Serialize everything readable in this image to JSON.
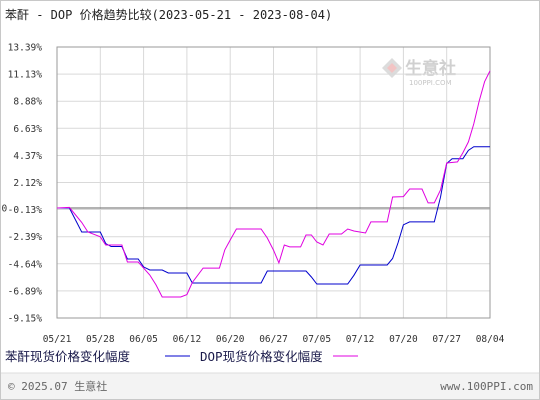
{
  "watermark": {
    "brand": "生意社",
    "site": "100PPI.COM"
  },
  "footer": {
    "copyright": "© 2025.07 生意社",
    "site": "www.100PPI.com"
  },
  "chart_data": {
    "type": "line",
    "title": "苯酐 - DOP 价格趋势比较(2023-05-21 - 2023-08-04)",
    "xlim": [
      "2023-05-21",
      "2023-08-04"
    ],
    "ylim": [
      -9.15,
      13.39
    ],
    "grid": true,
    "legend_position": "bottom",
    "zero_label": "0",
    "x_ticks": [
      {
        "date": "2023-05-21",
        "label": "05/21"
      },
      {
        "date": "2023-05-28",
        "label": "05/28"
      },
      {
        "date": "2023-06-05",
        "label": "06/05"
      },
      {
        "date": "2023-06-12",
        "label": "06/12"
      },
      {
        "date": "2023-06-20",
        "label": "06/20"
      },
      {
        "date": "2023-06-27",
        "label": "06/27"
      },
      {
        "date": "2023-07-05",
        "label": "07/05"
      },
      {
        "date": "2023-07-12",
        "label": "07/12"
      },
      {
        "date": "2023-07-20",
        "label": "07/20"
      },
      {
        "date": "2023-07-27",
        "label": "07/27"
      },
      {
        "date": "2023-08-04",
        "label": "08/04"
      }
    ],
    "y_ticks": [
      {
        "value": 13.39,
        "label": "13.39%"
      },
      {
        "value": 11.13,
        "label": "11.13%"
      },
      {
        "value": 8.88,
        "label": "8.88%"
      },
      {
        "value": 6.63,
        "label": "6.63%"
      },
      {
        "value": 4.37,
        "label": "4.37%"
      },
      {
        "value": 2.12,
        "label": "2.12%"
      },
      {
        "value": -0.13,
        "label": "-0.13%"
      },
      {
        "value": -2.39,
        "label": "-2.39%"
      },
      {
        "value": -4.64,
        "label": "-4.64%"
      },
      {
        "value": -6.89,
        "label": "-6.89%"
      },
      {
        "value": -9.15,
        "label": "-9.15%"
      }
    ],
    "series": [
      {
        "name": "苯酐现货价格变化幅度",
        "color": "#0000cc",
        "points": [
          [
            "2023-05-21",
            0.0
          ],
          [
            "2023-05-23",
            0.0
          ],
          [
            "2023-05-25",
            -2.0
          ],
          [
            "2023-05-28",
            -2.0
          ],
          [
            "2023-05-29",
            -2.95
          ],
          [
            "2023-05-30",
            -3.2
          ],
          [
            "2023-06-01",
            -3.2
          ],
          [
            "2023-06-02",
            -4.24
          ],
          [
            "2023-06-04",
            -4.24
          ],
          [
            "2023-06-05",
            -4.9
          ],
          [
            "2023-06-06",
            -5.16
          ],
          [
            "2023-06-08",
            -5.16
          ],
          [
            "2023-06-09",
            -5.41
          ],
          [
            "2023-06-12",
            -5.41
          ],
          [
            "2023-06-13",
            -6.24
          ],
          [
            "2023-06-25",
            -6.24
          ],
          [
            "2023-06-26",
            -5.24
          ],
          [
            "2023-07-03",
            -5.24
          ],
          [
            "2023-07-04",
            -5.74
          ],
          [
            "2023-07-05",
            -6.32
          ],
          [
            "2023-07-10",
            -6.32
          ],
          [
            "2023-07-11",
            -5.6
          ],
          [
            "2023-07-12",
            -4.74
          ],
          [
            "2023-07-17",
            -4.74
          ],
          [
            "2023-07-18",
            -4.2
          ],
          [
            "2023-07-19",
            -2.9
          ],
          [
            "2023-07-20",
            -1.4
          ],
          [
            "2023-07-21",
            -1.16
          ],
          [
            "2023-07-25",
            -1.16
          ],
          [
            "2023-07-26",
            0.9
          ],
          [
            "2023-07-27",
            3.7
          ],
          [
            "2023-07-28",
            4.1
          ],
          [
            "2023-07-30",
            4.1
          ],
          [
            "2023-07-31",
            4.8
          ],
          [
            "2023-08-01",
            5.1
          ],
          [
            "2023-08-04",
            5.1
          ]
        ]
      },
      {
        "name": "DOP现货价格变化幅度",
        "color": "#e000e0",
        "points": [
          [
            "2023-05-21",
            0.0
          ],
          [
            "2023-05-23",
            0.05
          ],
          [
            "2023-05-25",
            -1.2
          ],
          [
            "2023-05-26",
            -2.0
          ],
          [
            "2023-05-28",
            -2.4
          ],
          [
            "2023-05-29",
            -3.08
          ],
          [
            "2023-06-01",
            -3.08
          ],
          [
            "2023-06-02",
            -4.49
          ],
          [
            "2023-06-04",
            -4.49
          ],
          [
            "2023-06-05",
            -5.0
          ],
          [
            "2023-06-06",
            -5.57
          ],
          [
            "2023-06-07",
            -6.4
          ],
          [
            "2023-06-08",
            -7.4
          ],
          [
            "2023-06-11",
            -7.4
          ],
          [
            "2023-06-12",
            -7.2
          ],
          [
            "2023-06-13",
            -6.2
          ],
          [
            "2023-06-15",
            -5.0
          ],
          [
            "2023-06-18",
            -5.0
          ],
          [
            "2023-06-19",
            -3.49
          ],
          [
            "2023-06-20",
            -2.66
          ],
          [
            "2023-06-21",
            -1.75
          ],
          [
            "2023-06-25",
            -1.75
          ],
          [
            "2023-06-26",
            -2.5
          ],
          [
            "2023-06-27",
            -3.5
          ],
          [
            "2023-06-28",
            -4.57
          ],
          [
            "2023-06-29",
            -3.08
          ],
          [
            "2023-06-30",
            -3.24
          ],
          [
            "2023-07-02",
            -3.24
          ],
          [
            "2023-07-03",
            -2.25
          ],
          [
            "2023-07-04",
            -2.25
          ],
          [
            "2023-07-05",
            -2.83
          ],
          [
            "2023-07-06",
            -3.08
          ],
          [
            "2023-07-07",
            -2.16
          ],
          [
            "2023-07-09",
            -2.16
          ],
          [
            "2023-07-10",
            -1.75
          ],
          [
            "2023-07-11",
            -1.91
          ],
          [
            "2023-07-13",
            -2.08
          ],
          [
            "2023-07-14",
            -1.16
          ],
          [
            "2023-07-17",
            -1.16
          ],
          [
            "2023-07-18",
            0.91
          ],
          [
            "2023-07-20",
            0.95
          ],
          [
            "2023-07-21",
            1.58
          ],
          [
            "2023-07-23",
            1.58
          ],
          [
            "2023-07-24",
            0.42
          ],
          [
            "2023-07-25",
            0.42
          ],
          [
            "2023-07-26",
            1.5
          ],
          [
            "2023-07-27",
            3.74
          ],
          [
            "2023-07-29",
            3.83
          ],
          [
            "2023-07-30",
            4.6
          ],
          [
            "2023-07-31",
            5.5
          ],
          [
            "2023-08-01",
            7.0
          ],
          [
            "2023-08-02",
            8.9
          ],
          [
            "2023-08-03",
            10.5
          ],
          [
            "2023-08-04",
            11.4
          ]
        ]
      }
    ]
  }
}
